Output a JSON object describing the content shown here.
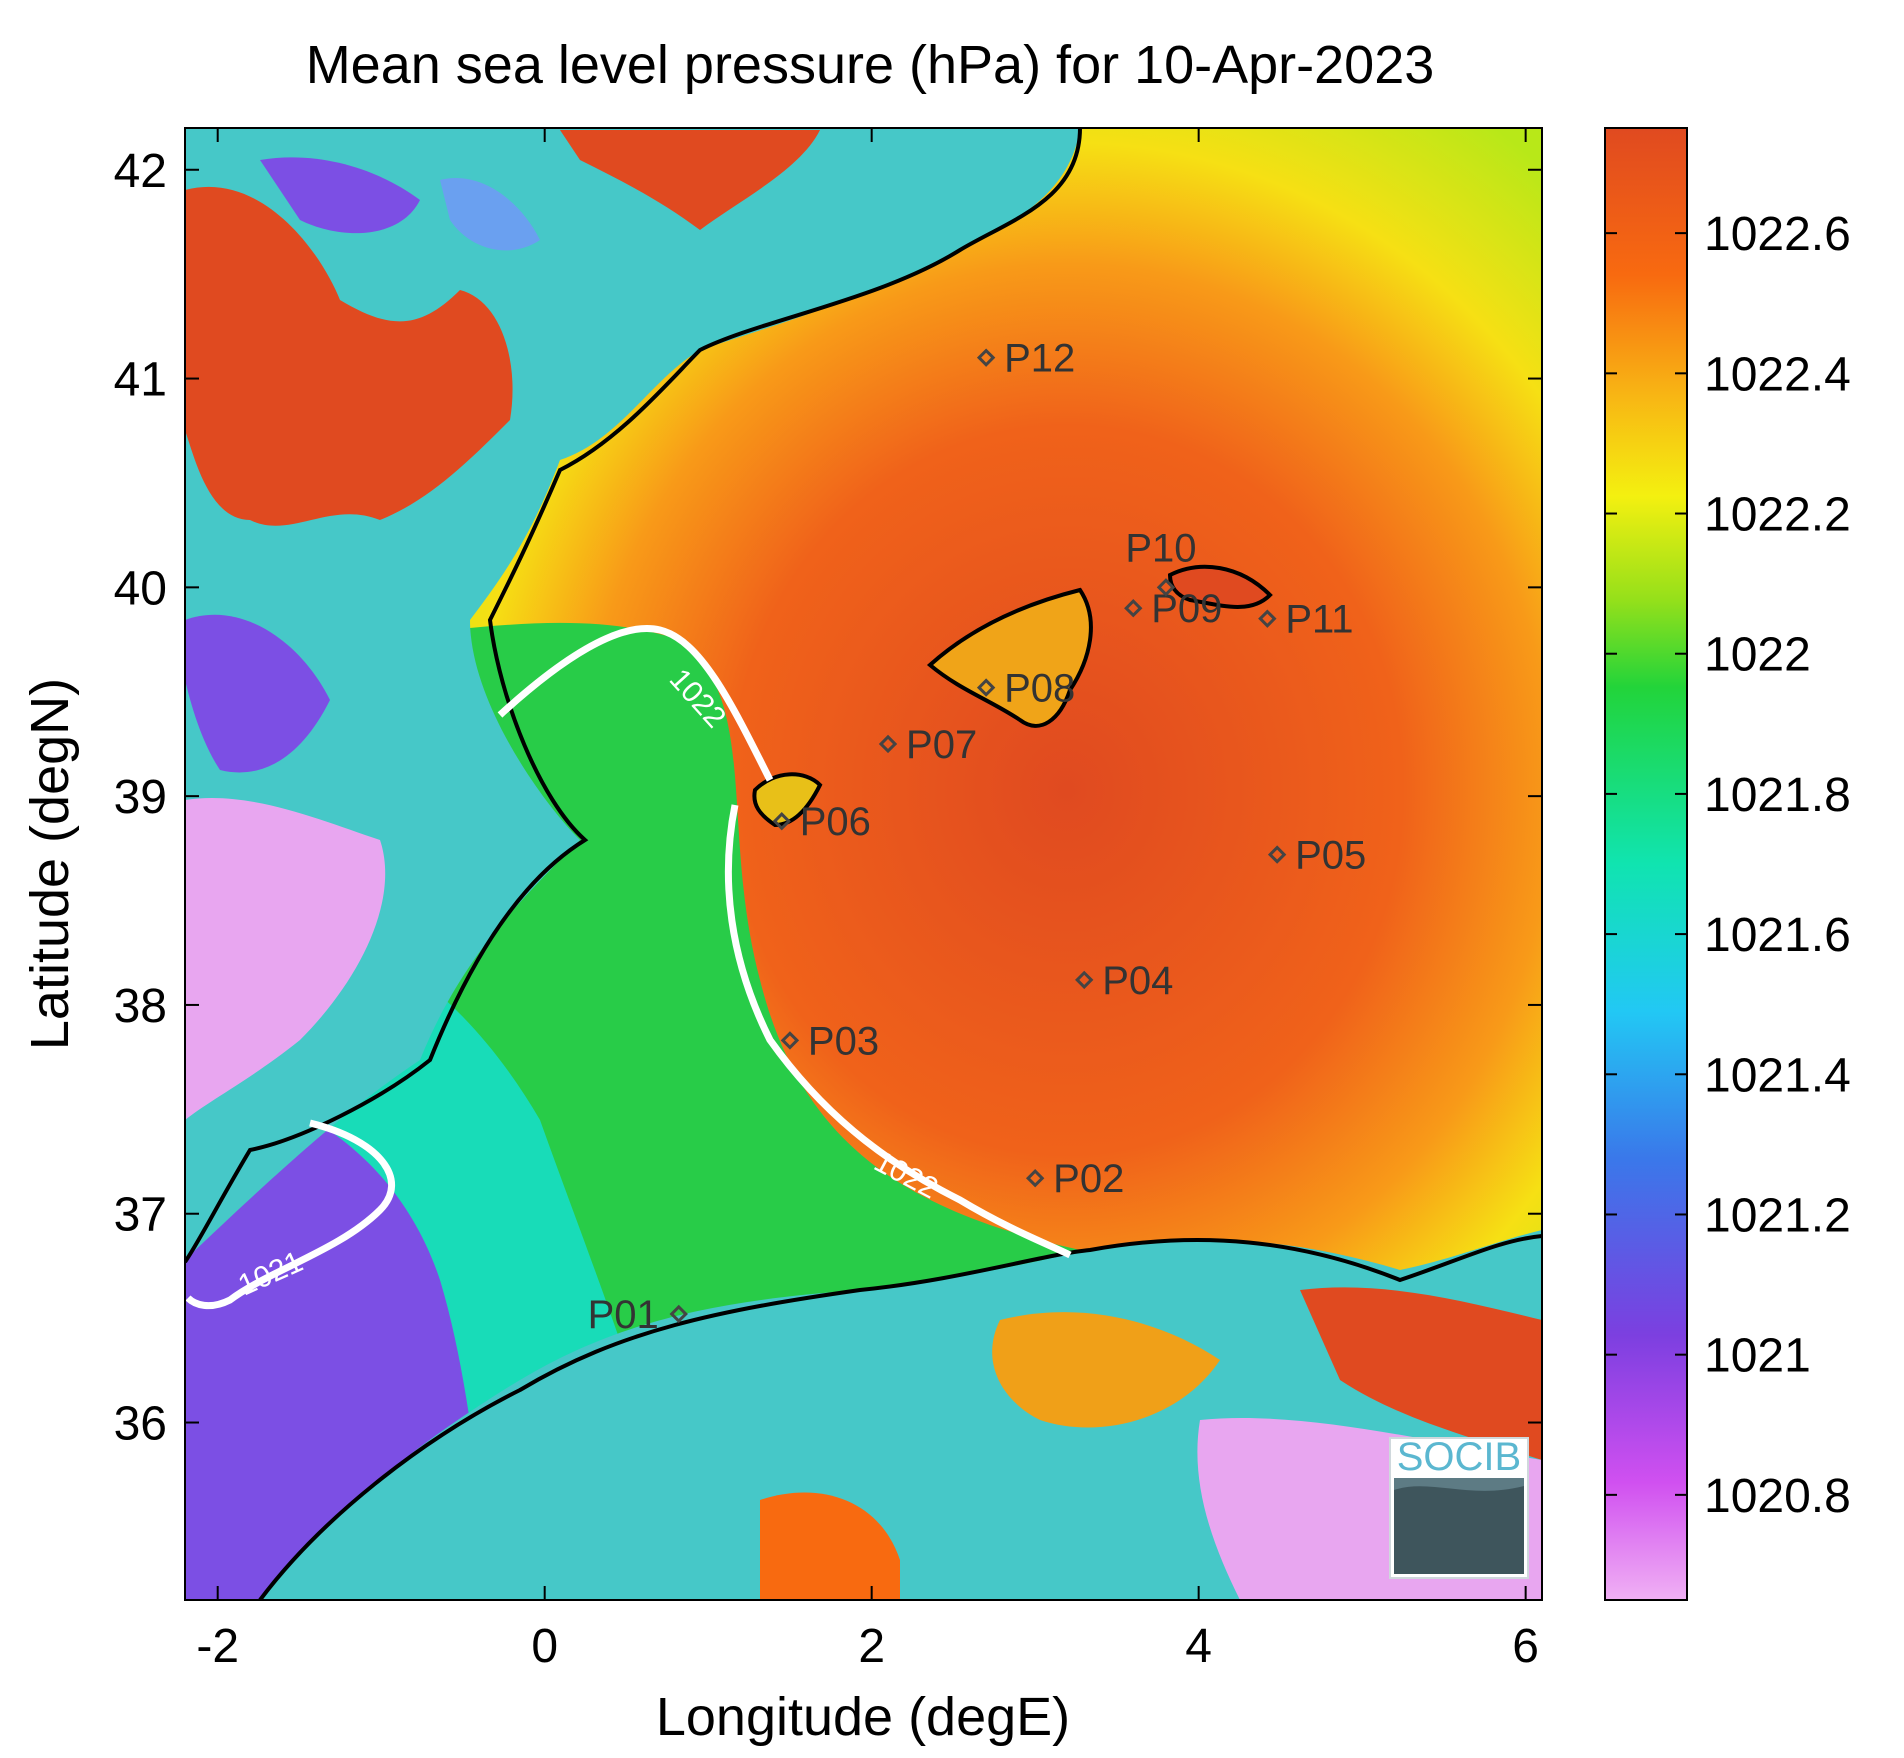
{
  "title": "Mean sea level pressure (hPa) for 10-Apr-2023",
  "xlabel": "Longitude (degE)",
  "ylabel": "Latitude (degN)",
  "x_ticks": [
    "-2",
    "0",
    "2",
    "4",
    "6"
  ],
  "y_ticks": [
    "42",
    "41",
    "40",
    "39",
    "38",
    "37",
    "36"
  ],
  "colorbar": {
    "ticks": [
      "1022.6",
      "1022.4",
      "1022.2",
      "1022",
      "1021.8",
      "1021.6",
      "1021.4",
      "1021.2",
      "1021",
      "1020.8"
    ],
    "colors": [
      "#e8a6f0",
      "#c044f0",
      "#7c3fe0",
      "#4a6de8",
      "#28c8f0",
      "#10e0b0",
      "#22d43a",
      "#9ae21a",
      "#f0f010",
      "#f8b414",
      "#f86a10",
      "#e04a20"
    ]
  },
  "contours": [
    {
      "level": "1022"
    },
    {
      "level": "1022"
    },
    {
      "level": "1021"
    }
  ],
  "points": [
    {
      "name": "P01",
      "lon": 0.82,
      "lat": 36.52
    },
    {
      "name": "P02",
      "lon": 3.0,
      "lat": 37.17
    },
    {
      "name": "P03",
      "lon": 1.5,
      "lat": 37.83
    },
    {
      "name": "P04",
      "lon": 3.3,
      "lat": 38.12
    },
    {
      "name": "P05",
      "lon": 4.48,
      "lat": 38.72
    },
    {
      "name": "P06",
      "lon": 1.45,
      "lat": 38.88
    },
    {
      "name": "P07",
      "lon": 2.1,
      "lat": 39.25
    },
    {
      "name": "P08",
      "lon": 2.7,
      "lat": 39.52
    },
    {
      "name": "P09",
      "lon": 3.6,
      "lat": 39.9
    },
    {
      "name": "P10",
      "lon": 3.8,
      "lat": 40.0
    },
    {
      "name": "P11",
      "lon": 4.42,
      "lat": 39.85
    },
    {
      "name": "P12",
      "lon": 2.7,
      "lat": 41.1
    }
  ],
  "logo": "SOCIB"
}
